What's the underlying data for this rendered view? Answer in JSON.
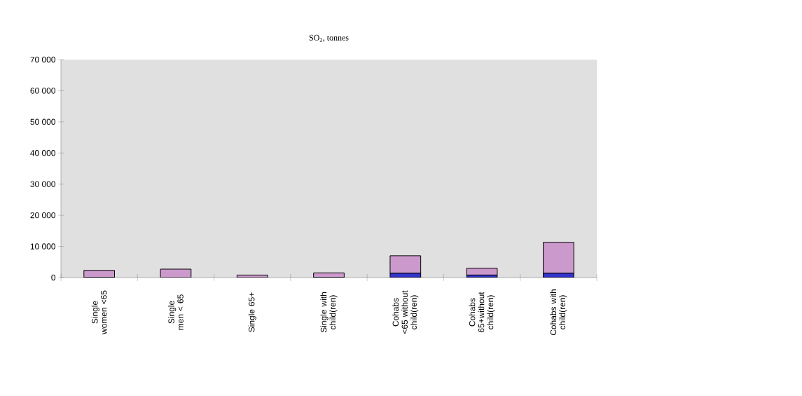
{
  "chart_data": {
    "type": "bar",
    "stacked": true,
    "title": "SO$_{2}$, tonnes",
    "categories": [
      "Single women <65",
      "Single men < 65",
      "Single 65+",
      "Single with child(ren)",
      "Cohabs <65 without child(ren)",
      "Cohabs 65+without child(ren)",
      "Cohabs with child(ren)"
    ],
    "series": [
      {
        "color": "#3333cc",
        "values": [
          0,
          null,
          null,
          0,
          1400,
          800,
          1400
        ]
      },
      {
        "color": "#cc99cc",
        "values": [
          2300,
          2700,
          800,
          1500,
          5600,
          2200,
          9900
        ]
      }
    ],
    "ylim": [
      0,
      70000
    ],
    "yticks": [
      {
        "value": 0,
        "label": "0"
      },
      {
        "value": 10000,
        "label": "10 000"
      },
      {
        "value": 20000,
        "label": "20 000"
      },
      {
        "value": 30000,
        "label": "30 000"
      },
      {
        "value": 40000,
        "label": "40 000"
      },
      {
        "value": 50000,
        "label": "50 000"
      },
      {
        "value": 60000,
        "label": "60 000"
      },
      {
        "value": 70000,
        "label": "70 000"
      }
    ]
  }
}
